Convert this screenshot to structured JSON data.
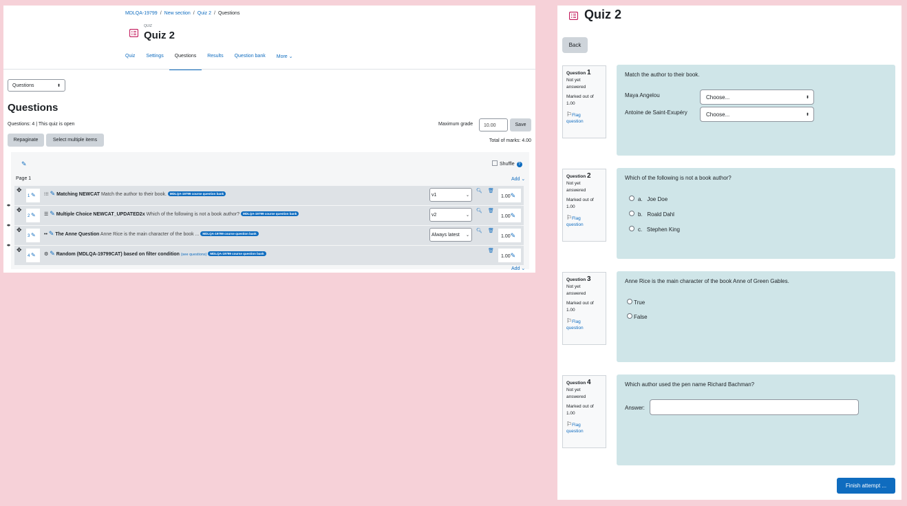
{
  "left": {
    "breadcrumb": [
      "MDLQA-19799",
      "New section",
      "Quiz 2",
      "Questions"
    ],
    "quiz_label": "QUIZ",
    "title": "Quiz 2",
    "tabs": [
      "Quiz",
      "Settings",
      "Questions",
      "Results",
      "Question bank",
      "More ⌄"
    ],
    "active_tab": "Questions",
    "page_select": "Questions",
    "heading": "Questions",
    "questions_info": "Questions: 4 | This quiz is open",
    "max_grade_label": "Maximum grade",
    "max_grade_value": "10.00",
    "save_label": "Save",
    "repaginate_label": "Repaginate",
    "select_multiple_label": "Select multiple items",
    "total_marks": "Total of marks: 4.00",
    "shuffle_label": "Shuffle",
    "page_label": "Page 1",
    "add_label": "Add ⌄",
    "slots": [
      {
        "num": "1",
        "type_icon": "matching-icon",
        "name": "Matching NEWCAT",
        "desc": "Match the author to their book.",
        "badge": "MDLQA-19799 course question bank",
        "version": "v1",
        "mark": "1.00"
      },
      {
        "num": "2",
        "type_icon": "multichoice-icon",
        "name": "Multiple Choice NEWCAT_UPDATED2x",
        "desc": "Which of the following is not a book author?",
        "badge": "MDLQA-19799 course question bank",
        "version": "v2",
        "mark": "1.00"
      },
      {
        "num": "3",
        "type_icon": "truefalse-icon",
        "name": "The Anne Question",
        "desc": "Anne Rice is the main character of the book ...",
        "badge": "MDLQA-19799 course question bank",
        "version": "Always latest",
        "mark": "1.00"
      },
      {
        "num": "4",
        "type_icon": "random-icon",
        "name": "Random (MDLQA-19799CAT) based on filter condition",
        "desc": "(see questions)",
        "badge": "MDLQA-19799 course question bank",
        "version": "",
        "mark": "1.00"
      }
    ]
  },
  "right": {
    "title": "Quiz 2",
    "back_label": "Back",
    "finish_label": "Finish attempt ...",
    "questions": [
      {
        "label": "Question",
        "num": "1",
        "state1": "Not yet",
        "state2": "answered",
        "marked1": "Marked out of",
        "marked2": "1.00",
        "flag1": "Flag",
        "flag2": "question",
        "text": "Match the author to their book."
      },
      {
        "label": "Question",
        "num": "2",
        "state1": "Not yet",
        "state2": "answered",
        "marked1": "Marked out of",
        "marked2": "1.00",
        "flag1": "Flag",
        "flag2": "question",
        "text": "Which of the following is not a book author?"
      },
      {
        "label": "Question",
        "num": "3",
        "state1": "Not yet",
        "state2": "answered",
        "marked1": "Marked out of",
        "marked2": "1.00",
        "flag1": "Flag",
        "flag2": "question",
        "text": "Anne Rice is the main character of the book Anne of Green Gables."
      },
      {
        "label": "Question",
        "num": "4",
        "state1": "Not yet",
        "state2": "answered",
        "marked1": "Marked out of",
        "marked2": "1.00",
        "flag1": "Flag",
        "flag2": "question",
        "text": "Which author used the pen name Richard Bachman?"
      }
    ],
    "match": [
      {
        "prompt": "Maya Angelou",
        "select": "Choose..."
      },
      {
        "prompt": "Antoine de Saint-Exupéry",
        "select": "Choose..."
      }
    ],
    "mc_options": [
      {
        "letter": "a.",
        "text": "Joe Doe"
      },
      {
        "letter": "b.",
        "text": "Roald Dahl"
      },
      {
        "letter": "c.",
        "text": "Stephen King"
      }
    ],
    "tf_options": [
      "True",
      "False"
    ],
    "answer_label": "Answer:"
  },
  "colors": {
    "background": "#f6d1d8",
    "accent": "#0f6cbf",
    "question_bg": "#cfe5e8",
    "quiz_icon": "#c2185b"
  }
}
